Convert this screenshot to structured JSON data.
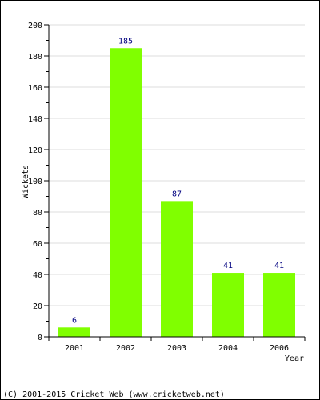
{
  "chart_data": {
    "type": "bar",
    "categories": [
      "2001",
      "2002",
      "2003",
      "2004",
      "2006"
    ],
    "values": [
      6,
      185,
      87,
      41,
      41
    ],
    "data_labels": [
      "6",
      "185",
      "87",
      "41",
      "41"
    ],
    "xlabel": "Year",
    "ylabel": "Wickets",
    "ylim": [
      0,
      200
    ],
    "yticks": [
      0,
      20,
      40,
      60,
      80,
      100,
      120,
      140,
      160,
      180,
      200
    ],
    "ytick_labels": [
      "0",
      "20",
      "40",
      "60",
      "80",
      "100",
      "120",
      "140",
      "160",
      "180",
      "200"
    ],
    "grid": true,
    "bar_color": "#80ff00",
    "label_color": "#000080"
  },
  "footer": {
    "copyright": "(C) 2001-2015 Cricket Web (www.cricketweb.net)"
  }
}
